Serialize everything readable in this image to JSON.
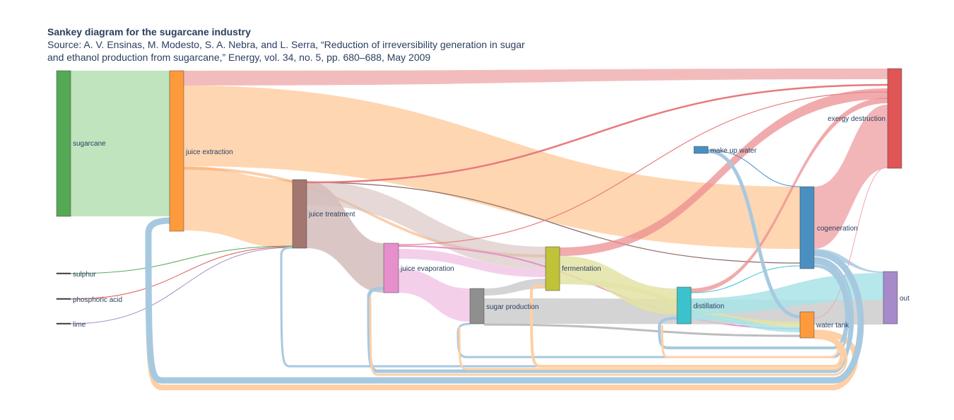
{
  "title": "Sankey diagram for the sugarcane industry",
  "subtitle_line1": "Source: A. V. Ensinas, M. Modesto, S. A. Nebra, and L. Serra, “Reduction of irreversibility generation in sugar",
  "subtitle_line2": "and ethanol production from sugarcane,” Energy, vol. 34, no. 5, pp. 680–688, May 2009",
  "nodes": [
    {
      "id": "sugarcane",
      "label": "sugarcane",
      "color": "#55a955"
    },
    {
      "id": "juice_extraction",
      "label": "juice extraction",
      "color": "#ff9a3c"
    },
    {
      "id": "juice_treatment",
      "label": "juice treatment",
      "color": "#a37770"
    },
    {
      "id": "juice_evaporation",
      "label": "juice evaporation",
      "color": "#e68fcc"
    },
    {
      "id": "sugar_production",
      "label": "sugar production",
      "color": "#8f8f8f"
    },
    {
      "id": "fermentation",
      "label": "fermentation",
      "color": "#c2c23a"
    },
    {
      "id": "distillation",
      "label": "distillation",
      "color": "#3cc2cc"
    },
    {
      "id": "cogeneration",
      "label": "cogeneration",
      "color": "#4a8fc2"
    },
    {
      "id": "make_up_water",
      "label": "make up water",
      "color": "#4a8fc2"
    },
    {
      "id": "water_tank",
      "label": "water tank",
      "color": "#ff9a3c"
    },
    {
      "id": "exergy_destruction",
      "label": "exergy destruction",
      "color": "#e05555"
    },
    {
      "id": "out",
      "label": "out",
      "color": "#a68ac9"
    },
    {
      "id": "sulphur",
      "label": "sulphur",
      "color": "#333333"
    },
    {
      "id": "phosphoric_acid",
      "label": "phosphoric acid",
      "color": "#333333"
    },
    {
      "id": "lime",
      "label": "lime",
      "color": "#333333"
    }
  ],
  "link_colors": {
    "green": "#b5dfb1",
    "orange": "#ffcc9e",
    "red": "#f0a9ab",
    "brown": "#cfb7b5",
    "pink": "#f2c2e3",
    "gray": "#c9c9c9",
    "olive": "#e3e39e",
    "cyan": "#a3e0e6",
    "blue": "#a7c9e0"
  }
}
